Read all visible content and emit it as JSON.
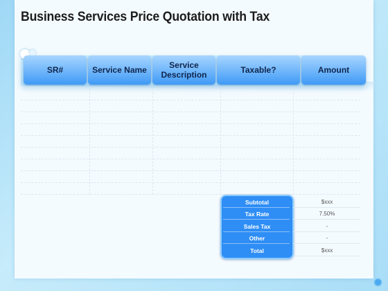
{
  "title": "Business Services Price Quotation with Tax",
  "columns": [
    {
      "label": "SR#"
    },
    {
      "label": "Service Name"
    },
    {
      "label": "Service\nDescription"
    },
    {
      "label": "Taxable?"
    },
    {
      "label": "Amount"
    }
  ],
  "summary": [
    {
      "label": "Subtotal",
      "value": "$xxx"
    },
    {
      "label": "Tax Rate",
      "value": "7.50%"
    },
    {
      "label": "Sales Tax",
      "value": "-"
    },
    {
      "label": "Other",
      "value": "-"
    },
    {
      "label": "Total",
      "value": "$xxx"
    }
  ],
  "colors": {
    "accent": "#3f9af6",
    "accent_light": "#a8d6ff",
    "summary_bg": "#2f8ef5",
    "background": "#a9ddf7"
  }
}
